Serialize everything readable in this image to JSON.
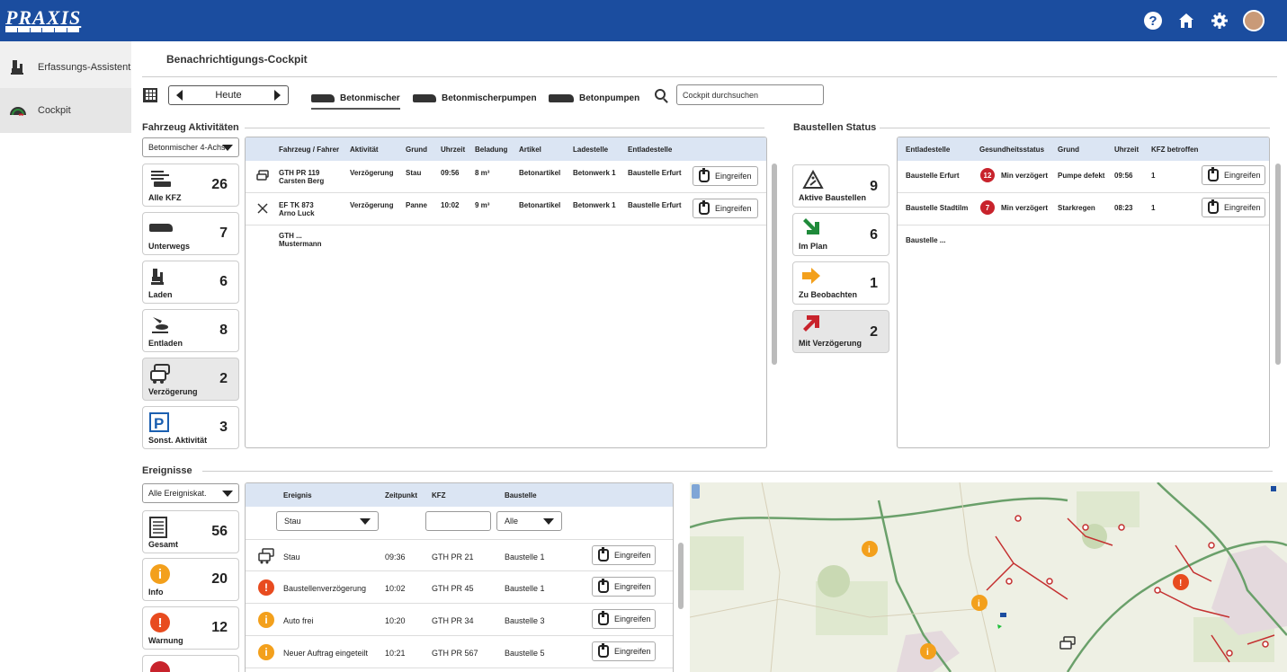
{
  "brand": {
    "logo_text": "PRAXIS"
  },
  "colors": {
    "header_bg": "#1b4d9f",
    "table_head": "#dbe5f3",
    "info": "#f3a01c",
    "warning": "#e84b1f",
    "badge": "#c8232c"
  },
  "sidebar": {
    "items": [
      {
        "label": "Erfassungs-Assistent",
        "icon": "loader-icon"
      },
      {
        "label": "Cockpit",
        "icon": "gauge-icon"
      }
    ]
  },
  "page": {
    "title": "Benachrichtigungs-Cockpit"
  },
  "toolbar": {
    "date_label": "Heute",
    "tabs": [
      "Betonmischer",
      "Betonmischerpumpen",
      "Betonpumpen"
    ],
    "search_placeholder": "Cockpit durchsuchen"
  },
  "fahrzeug": {
    "section_label": "Fahrzeug Aktivitäten",
    "filter": "Betonmischer 4-Achs",
    "cards": [
      {
        "label": "Alle KFZ",
        "count": "26"
      },
      {
        "label": "Unterwegs",
        "count": "7"
      },
      {
        "label": "Laden",
        "count": "6"
      },
      {
        "label": "Entladen",
        "count": "8"
      },
      {
        "label": "Verzögerung",
        "count": "2"
      },
      {
        "label": "Sonst. Aktivität",
        "count": "3"
      }
    ],
    "columns": [
      "Fahrzeug / Fahrer",
      "Aktivität",
      "Grund",
      "Uhrzeit",
      "Beladung",
      "Artikel",
      "Ladestelle",
      "Entladestelle"
    ],
    "rows": [
      {
        "vehicle": "GTH PR 119",
        "driver": "Carsten Berg",
        "activity": "Verzögerung",
        "reason": "Stau",
        "time": "09:56",
        "load": "8 m³",
        "article": "Betonartikel",
        "loading": "Betonwerk 1",
        "unloading": "Baustelle Erfurt",
        "action": "Eingreifen"
      },
      {
        "vehicle": "EF TK 873",
        "driver": "Arno Luck",
        "activity": "Verzögerung",
        "reason": "Panne",
        "time": "10:02",
        "load": "9 m³",
        "article": "Betonartikel",
        "loading": "Betonwerk 1",
        "unloading": "Baustelle Erfurt",
        "action": "Eingreifen"
      },
      {
        "vehicle": "GTH ...",
        "driver": "Mustermann"
      }
    ]
  },
  "baustellen": {
    "section_label": "Baustellen Status",
    "cards": [
      {
        "label": "Aktive Baustellen",
        "count": "9"
      },
      {
        "label": "Im Plan",
        "count": "6"
      },
      {
        "label": "Zu Beobachten",
        "count": "1"
      },
      {
        "label": "Mit Verzögerung",
        "count": "2"
      }
    ],
    "columns": [
      "Entladestelle",
      "Gesundheitsstatus",
      "Grund",
      "Uhrzeit",
      "KFZ betroffen"
    ],
    "rows": [
      {
        "site": "Baustelle Erfurt",
        "badge": "12",
        "status": "Min verzögert",
        "reason": "Pumpe defekt",
        "time": "09:56",
        "affected": "1",
        "action": "Eingreifen"
      },
      {
        "site": "Baustelle Stadtilm",
        "badge": "7",
        "status": "Min verzögert",
        "reason": "Starkregen",
        "time": "08:23",
        "affected": "1",
        "action": "Eingreifen"
      },
      {
        "site": "Baustelle ..."
      }
    ]
  },
  "ereignisse": {
    "section_label": "Ereignisse",
    "filter": "Alle Ereigniskat.",
    "cards": [
      {
        "label": "Gesamt",
        "count": "56"
      },
      {
        "label": "Info",
        "count": "20"
      },
      {
        "label": "Warnung",
        "count": "12"
      }
    ],
    "columns": [
      "Ereignis",
      "Zeitpunkt",
      "KFZ",
      "Baustelle"
    ],
    "filters": {
      "ereignis": "Stau",
      "kfz": "",
      "baustelle": "Alle"
    },
    "rows": [
      {
        "event": "Stau",
        "time": "09:36",
        "kfz": "GTH PR 21",
        "site": "Baustelle 1",
        "action": "Eingreifen"
      },
      {
        "event": "Baustellenverzögerung",
        "time": "10:02",
        "kfz": "GTH PR 45",
        "site": "Baustelle 1",
        "action": "Eingreifen"
      },
      {
        "event": "Auto frei",
        "time": "10:20",
        "kfz": "GTH PR 34",
        "site": "Baustelle 3",
        "action": "Eingreifen"
      },
      {
        "event": "Neuer Auftrag eingeteilt",
        "time": "10:21",
        "kfz": "GTH PR 567",
        "site": "Baustelle 5",
        "action": "Eingreifen"
      }
    ]
  }
}
